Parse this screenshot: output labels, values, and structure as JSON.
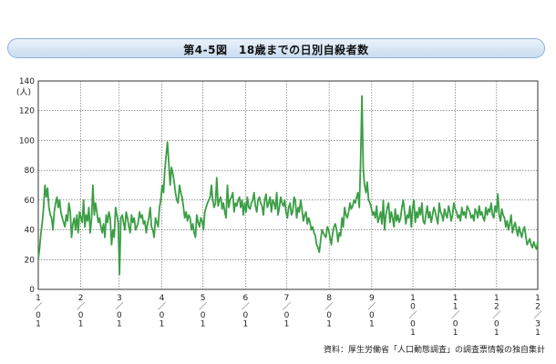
{
  "figure": {
    "title": "第4-5図　18歳までの日別自殺者数",
    "source": "資料：厚生労働省「人口動態調査」の調査票情報の独自集計"
  },
  "chart_data": {
    "type": "line",
    "ylabel": "(人)",
    "ylim": [
      0,
      140
    ],
    "yticks": [
      0,
      20,
      40,
      60,
      80,
      100,
      120,
      140
    ],
    "grid": true,
    "x_start_date": "1/1",
    "x_days": 365,
    "xticks": [
      {
        "day": 1,
        "label": [
          "1",
          "／",
          "0",
          "1"
        ]
      },
      {
        "day": 32,
        "label": [
          "2",
          "／",
          "0",
          "1"
        ]
      },
      {
        "day": 60,
        "label": [
          "3",
          "／",
          "0",
          "1"
        ]
      },
      {
        "day": 91,
        "label": [
          "4",
          "／",
          "0",
          "1"
        ]
      },
      {
        "day": 121,
        "label": [
          "5",
          "／",
          "0",
          "1"
        ]
      },
      {
        "day": 152,
        "label": [
          "6",
          "／",
          "0",
          "1"
        ]
      },
      {
        "day": 182,
        "label": [
          "7",
          "／",
          "0",
          "1"
        ]
      },
      {
        "day": 213,
        "label": [
          "8",
          "／",
          "0",
          "1"
        ]
      },
      {
        "day": 244,
        "label": [
          "9",
          "／",
          "0",
          "1"
        ]
      },
      {
        "day": 274,
        "label": [
          "1",
          "0",
          "／",
          "0",
          "1"
        ]
      },
      {
        "day": 305,
        "label": [
          "1",
          "1",
          "／",
          "0",
          "1"
        ]
      },
      {
        "day": 335,
        "label": [
          "1",
          "2",
          "／",
          "0",
          "1"
        ]
      },
      {
        "day": 365,
        "label": [
          "1",
          "2",
          "／",
          "3",
          "1"
        ]
      }
    ],
    "line_color": "#3a9e45",
    "series": [
      {
        "name": "",
        "values": [
          20,
          28,
          38,
          45,
          55,
          70,
          62,
          68,
          55,
          50,
          48,
          40,
          52,
          58,
          62,
          55,
          60,
          52,
          48,
          45,
          42,
          50,
          46,
          58,
          52,
          35,
          44,
          48,
          40,
          50,
          38,
          52,
          48,
          45,
          60,
          42,
          50,
          46,
          55,
          38,
          48,
          70,
          50,
          58,
          52,
          45,
          48,
          42,
          38,
          44,
          35,
          50,
          45,
          52,
          48,
          30,
          40,
          35,
          55,
          50,
          45,
          10,
          48,
          50,
          45,
          40,
          52,
          48,
          42,
          38,
          50,
          45,
          48,
          40,
          42,
          45,
          52,
          48,
          50,
          44,
          46,
          38,
          44,
          48,
          55,
          42,
          40,
          35,
          48,
          45,
          42,
          55,
          60,
          70,
          65,
          80,
          90,
          99,
          85,
          70,
          82,
          78,
          72,
          65,
          60,
          58,
          70,
          65,
          62,
          55,
          48,
          52,
          46,
          50,
          48,
          40,
          44,
          38,
          35,
          50,
          45,
          42,
          48,
          46,
          40,
          52,
          55,
          58,
          60,
          62,
          70,
          60,
          55,
          58,
          75,
          56,
          60,
          62,
          54,
          58,
          52,
          48,
          70,
          55,
          60,
          62,
          65,
          52,
          58,
          56,
          60,
          62,
          55,
          60,
          50,
          58,
          52,
          62,
          55,
          54,
          58,
          60,
          65,
          56,
          52,
          60,
          62,
          58,
          56,
          50,
          60,
          64,
          55,
          58,
          62,
          52,
          60,
          58,
          54,
          65,
          50,
          55,
          62,
          58,
          56,
          60,
          52,
          48,
          55,
          58,
          50,
          52,
          62,
          60,
          48,
          55,
          52,
          60,
          54,
          46,
          50,
          52,
          44,
          48,
          45,
          40,
          42,
          38,
          36,
          30,
          28,
          25,
          33,
          40,
          38,
          36,
          35,
          42,
          40,
          35,
          30,
          38,
          42,
          44,
          40,
          32,
          38,
          36,
          48,
          42,
          55,
          50,
          48,
          52,
          58,
          54,
          56,
          60,
          58,
          62,
          65,
          55,
          85,
          130,
          80,
          70,
          65,
          72,
          60,
          58,
          55,
          50,
          52,
          48,
          56,
          45,
          48,
          52,
          44,
          60,
          40,
          50,
          55,
          58,
          45,
          52,
          48,
          42,
          54,
          46,
          50,
          45,
          48,
          55,
          60,
          52,
          44,
          50,
          48,
          56,
          42,
          54,
          60,
          45,
          52,
          48,
          55,
          50,
          58,
          46,
          44,
          50,
          56,
          48,
          52,
          45,
          50,
          55,
          52,
          48,
          44,
          58,
          52,
          50,
          46,
          54,
          50,
          48,
          56,
          52,
          46,
          50,
          58,
          54,
          52,
          48,
          50,
          46,
          55,
          50,
          52,
          48,
          56,
          54,
          52,
          48,
          50,
          46,
          54,
          52,
          48,
          56,
          50,
          52,
          48,
          46,
          55,
          50,
          54,
          52,
          58,
          50,
          48,
          56,
          52,
          64,
          50,
          46,
          54,
          50,
          48,
          42,
          46,
          40,
          44,
          50,
          38,
          42,
          45,
          40,
          36,
          42,
          38,
          35,
          40,
          42,
          36,
          30,
          32,
          34,
          30,
          28,
          32,
          29,
          27,
          32
        ]
      }
    ]
  }
}
